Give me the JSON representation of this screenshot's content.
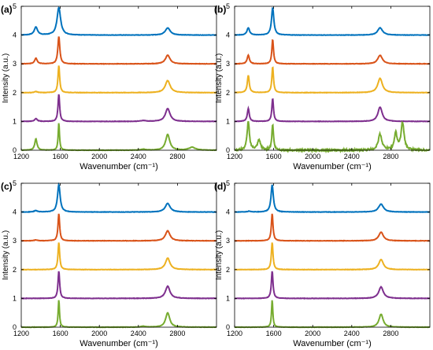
{
  "figure": {
    "panels_ids": [
      "a",
      "b",
      "c",
      "d"
    ]
  },
  "chart_data": [
    {
      "panel_label": "(a)",
      "type": "line",
      "xlabel": "Wavenumber (cm⁻¹)",
      "ylabel": "Intensity (a.u.)",
      "xlim": [
        1200,
        3200
      ],
      "ylim": [
        0,
        5
      ],
      "xticks": [
        1200,
        1600,
        2000,
        2400,
        2800
      ],
      "yticks": [
        0,
        1,
        2,
        3,
        4,
        5
      ],
      "grid": false,
      "series": [
        {
          "color": "#0072BD",
          "offset": 4,
          "peaks": [
            [
              1350,
              0.28,
              20
            ],
            [
              1585,
              0.95,
              22
            ],
            [
              2700,
              0.25,
              30
            ]
          ],
          "noise": 0.006
        },
        {
          "color": "#D95319",
          "offset": 3,
          "peaks": [
            [
              1350,
              0.2,
              16
            ],
            [
              1585,
              0.95,
              12
            ],
            [
              2700,
              0.3,
              28
            ]
          ],
          "noise": 0.006
        },
        {
          "color": "#EDB120",
          "offset": 2,
          "peaks": [
            [
              1350,
              0.04,
              16
            ],
            [
              1585,
              0.95,
              10
            ],
            [
              2700,
              0.42,
              30
            ]
          ],
          "noise": 0.006
        },
        {
          "color": "#7E2F8E",
          "offset": 1,
          "peaks": [
            [
              1350,
              0.1,
              16
            ],
            [
              1585,
              0.95,
              10
            ],
            [
              2450,
              0.03,
              30
            ],
            [
              2700,
              0.45,
              28
            ]
          ],
          "noise": 0.006
        },
        {
          "color": "#77AC30",
          "offset": 0,
          "peaks": [
            [
              1350,
              0.4,
              14
            ],
            [
              1585,
              0.95,
              8
            ],
            [
              2450,
              0.03,
              30
            ],
            [
              2700,
              0.55,
              25
            ],
            [
              2950,
              0.1,
              40
            ]
          ],
          "noise": 0.006
        }
      ]
    },
    {
      "panel_label": "(b)",
      "type": "line",
      "xlabel": "Wavenumber (cm⁻¹)",
      "ylabel": "Intensity (a.u.)",
      "xlim": [
        1200,
        3200
      ],
      "ylim": [
        0,
        5
      ],
      "xticks": [
        1200,
        1600,
        2000,
        2400,
        2800
      ],
      "yticks": [
        0,
        1,
        2,
        3,
        4,
        5
      ],
      "grid": false,
      "series": [
        {
          "color": "#0072BD",
          "offset": 4,
          "peaks": [
            [
              1340,
              0.25,
              16
            ],
            [
              1590,
              0.95,
              14
            ],
            [
              2690,
              0.25,
              30
            ]
          ],
          "noise": 0.006
        },
        {
          "color": "#D95319",
          "offset": 3,
          "peaks": [
            [
              1340,
              0.3,
              14
            ],
            [
              1590,
              0.85,
              10
            ],
            [
              2690,
              0.3,
              28
            ]
          ],
          "noise": 0.006
        },
        {
          "color": "#EDB120",
          "offset": 2,
          "peaks": [
            [
              1340,
              0.6,
              12
            ],
            [
              1590,
              0.9,
              10
            ],
            [
              2690,
              0.5,
              28
            ]
          ],
          "noise": 0.006
        },
        {
          "color": "#7E2F8E",
          "offset": 1,
          "peaks": [
            [
              1340,
              0.45,
              12
            ],
            [
              1590,
              0.8,
              10
            ],
            [
              2690,
              0.5,
              26
            ]
          ],
          "noise": 0.006
        },
        {
          "color": "#77AC30",
          "offset": 0,
          "peaks": [
            [
              1340,
              1.0,
              14
            ],
            [
              1450,
              0.35,
              18
            ],
            [
              1590,
              0.9,
              10
            ],
            [
              2690,
              0.55,
              22
            ],
            [
              2850,
              0.6,
              16
            ],
            [
              2920,
              0.95,
              18
            ]
          ],
          "noise": 0.03
        }
      ]
    },
    {
      "panel_label": "(c)",
      "type": "line",
      "xlabel": "Wavenumber (cm⁻¹)",
      "ylabel": "Intensity (a.u.)",
      "xlim": [
        1200,
        3200
      ],
      "ylim": [
        0,
        5
      ],
      "xticks": [
        1200,
        1600,
        2000,
        2400,
        2800
      ],
      "yticks": [
        0,
        1,
        2,
        3,
        4,
        5
      ],
      "grid": false,
      "series": [
        {
          "color": "#0072BD",
          "offset": 4,
          "peaks": [
            [
              1350,
              0.05,
              20
            ],
            [
              1585,
              0.95,
              16
            ],
            [
              2700,
              0.3,
              30
            ]
          ],
          "noise": 0.006
        },
        {
          "color": "#D95319",
          "offset": 3,
          "peaks": [
            [
              1350,
              0.03,
              20
            ],
            [
              1585,
              0.95,
              10
            ],
            [
              2700,
              0.35,
              28
            ]
          ],
          "noise": 0.006
        },
        {
          "color": "#EDB120",
          "offset": 2,
          "peaks": [
            [
              1585,
              0.95,
              10
            ],
            [
              2700,
              0.4,
              28
            ]
          ],
          "noise": 0.006
        },
        {
          "color": "#7E2F8E",
          "offset": 1,
          "peaks": [
            [
              1585,
              0.95,
              10
            ],
            [
              2700,
              0.42,
              28
            ]
          ],
          "noise": 0.006
        },
        {
          "color": "#77AC30",
          "offset": 0,
          "peaks": [
            [
              1585,
              0.95,
              8
            ],
            [
              2450,
              0.03,
              30
            ],
            [
              2700,
              0.5,
              25
            ]
          ],
          "noise": 0.006
        }
      ]
    },
    {
      "panel_label": "(d)",
      "type": "line",
      "xlabel": "Wavenumber (cm⁻¹)",
      "ylabel": "Intensity (a.u.)",
      "xlim": [
        1200,
        3200
      ],
      "ylim": [
        0,
        5
      ],
      "xticks": [
        1200,
        1600,
        2000,
        2400,
        2800
      ],
      "yticks": [
        0,
        1,
        2,
        3,
        4,
        5
      ],
      "grid": false,
      "series": [
        {
          "color": "#0072BD",
          "offset": 4,
          "peaks": [
            [
              1350,
              0.03,
              20
            ],
            [
              1585,
              0.95,
              14
            ],
            [
              2700,
              0.28,
              30
            ]
          ],
          "noise": 0.006
        },
        {
          "color": "#D95319",
          "offset": 3,
          "peaks": [
            [
              1585,
              0.95,
              10
            ],
            [
              2700,
              0.3,
              28
            ]
          ],
          "noise": 0.006
        },
        {
          "color": "#EDB120",
          "offset": 2,
          "peaks": [
            [
              1585,
              0.95,
              10
            ],
            [
              2700,
              0.35,
              28
            ]
          ],
          "noise": 0.006
        },
        {
          "color": "#7E2F8E",
          "offset": 1,
          "peaks": [
            [
              1585,
              0.95,
              10
            ],
            [
              2700,
              0.4,
              28
            ]
          ],
          "noise": 0.006
        },
        {
          "color": "#77AC30",
          "offset": 0,
          "peaks": [
            [
              1585,
              0.95,
              8
            ],
            [
              2700,
              0.45,
              25
            ]
          ],
          "noise": 0.006
        }
      ]
    }
  ]
}
